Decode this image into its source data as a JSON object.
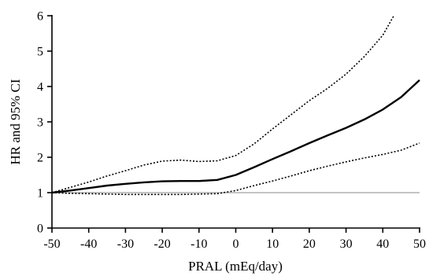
{
  "chart_data": {
    "type": "line",
    "xlabel": "PRAL (mEq/day)",
    "ylabel": "HR and 95% CI",
    "xlim": [
      -50,
      50
    ],
    "ylim": [
      0,
      6
    ],
    "x_ticks": [
      "-50",
      "-40",
      "-30",
      "-20",
      "-10",
      "0",
      "10",
      "20",
      "30",
      "40",
      "50"
    ],
    "y_ticks": [
      "0",
      "1",
      "2",
      "3",
      "4",
      "5",
      "6"
    ],
    "reference_line": 1,
    "grid": false,
    "legend": "none",
    "colors": {
      "axis": "#000000",
      "hr_line": "#000000",
      "ci_lines": "#000000",
      "reference_line": "#a0a0a0"
    },
    "series": [
      {
        "style": "solid",
        "x": [
          -50,
          -45,
          -40,
          -35,
          -30,
          -25,
          -20,
          -15,
          -10,
          -5,
          0,
          5,
          10,
          15,
          20,
          25,
          30,
          35,
          40,
          45,
          50
        ],
        "y": [
          1.0,
          1.06,
          1.13,
          1.2,
          1.25,
          1.29,
          1.32,
          1.33,
          1.33,
          1.36,
          1.5,
          1.72,
          1.95,
          2.17,
          2.4,
          2.62,
          2.83,
          3.07,
          3.35,
          3.7,
          4.18
        ]
      },
      {
        "style": "dotted",
        "x": [
          -50,
          -45,
          -40,
          -35,
          -30,
          -25,
          -20,
          -15,
          -10,
          -5,
          0,
          5,
          10,
          15,
          20,
          25,
          30,
          35,
          40,
          43
        ],
        "y": [
          1.0,
          1.15,
          1.3,
          1.47,
          1.62,
          1.78,
          1.89,
          1.92,
          1.88,
          1.9,
          2.05,
          2.38,
          2.8,
          3.2,
          3.6,
          3.95,
          4.35,
          4.85,
          5.45,
          6.0
        ]
      },
      {
        "style": "dotted",
        "x": [
          -50,
          -45,
          -40,
          -35,
          -30,
          -25,
          -20,
          -15,
          -10,
          -5,
          0,
          5,
          10,
          15,
          20,
          25,
          30,
          35,
          40,
          45,
          50
        ],
        "y": [
          1.0,
          0.98,
          0.97,
          0.96,
          0.95,
          0.95,
          0.95,
          0.95,
          0.96,
          0.97,
          1.06,
          1.2,
          1.33,
          1.47,
          1.62,
          1.75,
          1.87,
          1.98,
          2.08,
          2.2,
          2.4
        ]
      }
    ]
  }
}
